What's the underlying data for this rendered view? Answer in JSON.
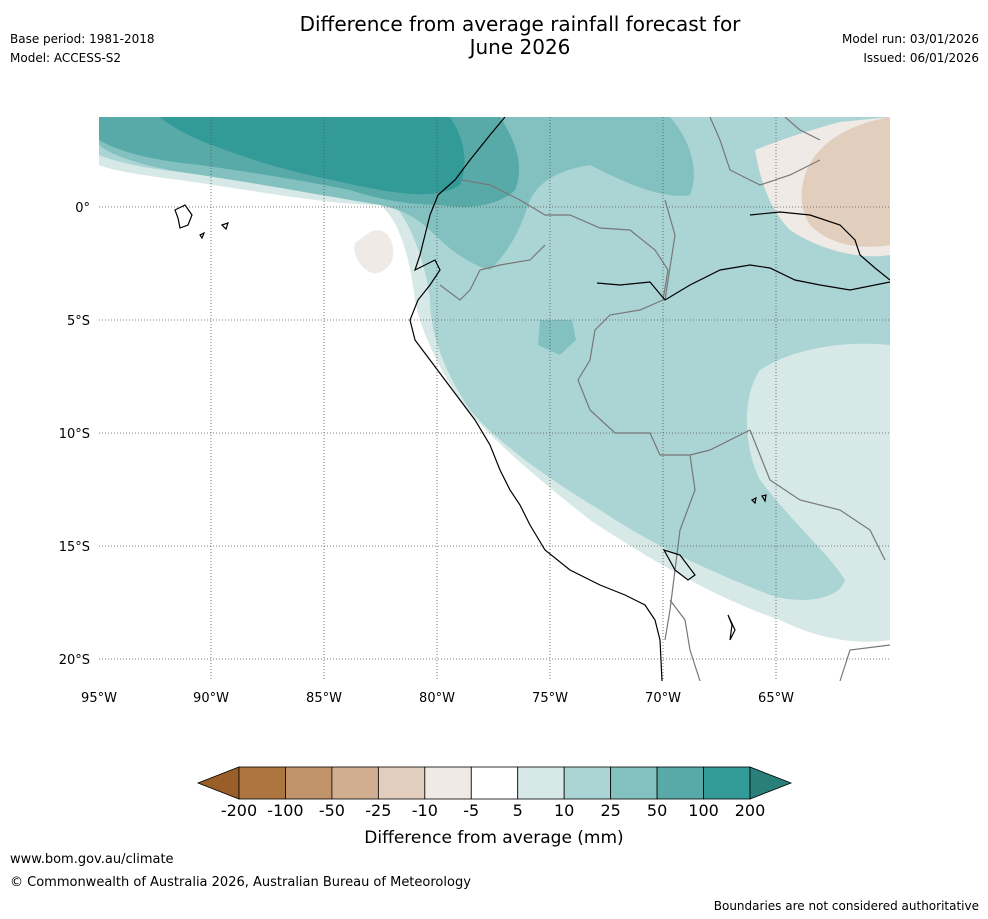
{
  "header": {
    "title_line1": "Difference from average rainfall forecast for",
    "title_line2": "June 2026",
    "base_period": "Base period: 1981-2018",
    "model": "Model: ACCESS-S2",
    "model_run": "Model run: 03/01/2026",
    "issued": "Issued: 06/01/2026"
  },
  "map": {
    "lat_ticks": [
      "0°",
      "5°S",
      "10°S",
      "15°S",
      "20°S"
    ],
    "lon_ticks": [
      "95°W",
      "90°W",
      "85°W",
      "80°W",
      "75°W",
      "70°W",
      "65°W"
    ]
  },
  "colorbar": {
    "tick_labels": [
      "-200",
      "-100",
      "-50",
      "-25",
      "-10",
      "-5",
      "5",
      "10",
      "25",
      "50",
      "100",
      "200"
    ],
    "colors": [
      "#9a5f28",
      "#ad7540",
      "#c1936b",
      "#d2ae90",
      "#e2cebc",
      "#efeae5",
      "#ffffff",
      "#d6e9e7",
      "#abd5d4",
      "#82c1bf",
      "#58aaa8",
      "#329a97",
      "#2a7f7b"
    ],
    "label": "Difference from average (mm)"
  },
  "footer": {
    "website": "www.bom.gov.au/climate",
    "copyright": "© Commonwealth of Australia 2026, Australian Bureau of Meteorology",
    "disclaimer": "Boundaries are not considered authoritative"
  }
}
